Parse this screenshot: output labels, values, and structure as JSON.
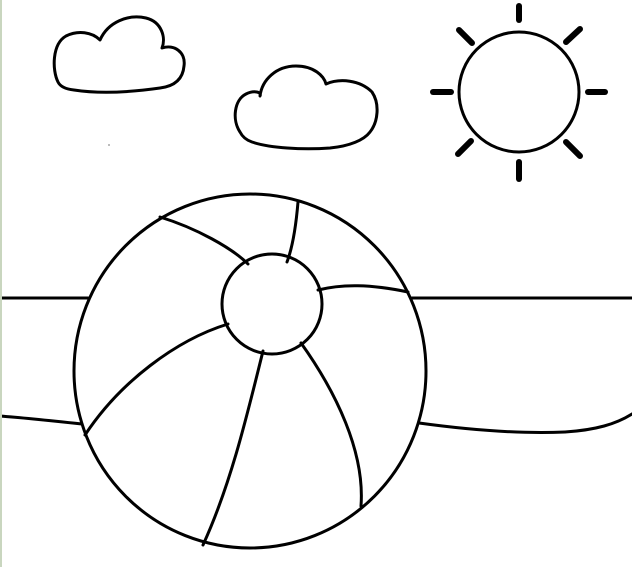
{
  "page": {
    "kind": "coloring-page",
    "subject_icons": [
      "cloud-icon",
      "sun-icon",
      "beach-ball-icon",
      "shoreline-icon"
    ]
  },
  "colors": {
    "ink": "#000000",
    "paper": "#ffffff",
    "edge": "#c9d6bf"
  }
}
